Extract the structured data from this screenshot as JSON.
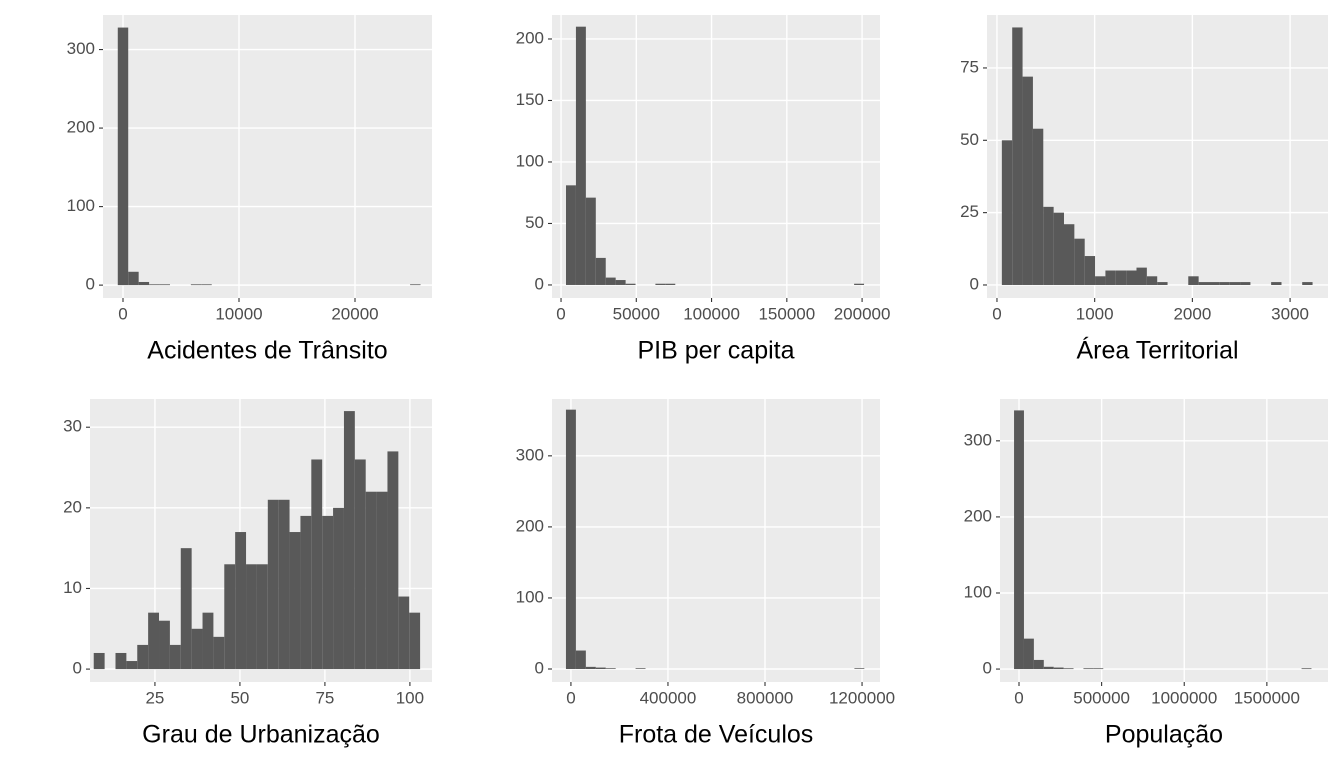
{
  "chart_data": [
    {
      "type": "histogram",
      "xlabel": "Acidentes de Trânsito",
      "color": "#595959",
      "grid": true,
      "bins": [
        -450,
        450,
        1350,
        2250,
        3150,
        4050,
        4950,
        5850,
        6750,
        7650,
        8550,
        9450,
        10350,
        11250,
        12150,
        13050,
        13950,
        14850,
        15750,
        16650,
        17550,
        18450,
        19350,
        20250,
        21150,
        22050,
        22950,
        23850,
        24750,
        25650,
        26550
      ],
      "counts": [
        328,
        17,
        4,
        1,
        1,
        0,
        0,
        1,
        1,
        0,
        0,
        0,
        0,
        0,
        0,
        0,
        0,
        0,
        0,
        0,
        0,
        0,
        0,
        0,
        0,
        0,
        0,
        0,
        1,
        0
      ],
      "xlim": [
        -1724,
        26638
      ],
      "ylim": [
        -16.4,
        344
      ],
      "xticks": [
        0,
        10000,
        20000
      ],
      "yticks": [
        0,
        100,
        200,
        300
      ]
    },
    {
      "type": "histogram",
      "xlabel": "PIB per capita",
      "color": "#595959",
      "grid": true,
      "bins": [
        3300,
        9900,
        16500,
        23100,
        29700,
        36300,
        42900,
        49500,
        56100,
        62700,
        69300,
        75900,
        82500,
        89100,
        95700,
        102300,
        108900,
        115500,
        122100,
        128700,
        135300,
        141900,
        148500,
        155100,
        161700,
        168300,
        174900,
        181500,
        188100,
        194700,
        201300
      ],
      "counts": [
        81,
        210,
        71,
        22,
        6,
        4,
        1,
        0,
        0,
        1,
        1,
        0,
        0,
        0,
        0,
        0,
        0,
        0,
        0,
        0,
        0,
        0,
        0,
        0,
        0,
        0,
        0,
        0,
        0,
        1
      ],
      "xlim": [
        -6000,
        211900
      ],
      "ylim": [
        -10.6,
        219.5
      ],
      "xticks": [
        0,
        50000,
        100000,
        150000,
        200000
      ],
      "yticks": [
        0,
        50,
        100,
        150,
        200
      ]
    },
    {
      "type": "histogram",
      "xlabel": "Área Territorial",
      "color": "#595959",
      "grid": true,
      "bins": [
        50,
        156,
        262,
        368,
        474,
        580,
        686,
        792,
        898,
        1004,
        1110,
        1216,
        1322,
        1428,
        1534,
        1640,
        1746,
        1852,
        1958,
        2064,
        2170,
        2276,
        2382,
        2488,
        2594,
        2700,
        2806,
        2912,
        3018,
        3124,
        3230
      ],
      "counts": [
        50,
        89,
        72,
        54,
        27,
        25,
        21,
        16,
        10,
        3,
        5,
        5,
        5,
        6,
        3,
        1,
        0,
        0,
        3,
        1,
        1,
        1,
        1,
        1,
        0,
        0,
        1,
        0,
        0,
        1
      ],
      "xlim": [
        -102,
        3388
      ],
      "ylim": [
        -4.5,
        93.3
      ],
      "xticks": [
        0,
        1000,
        2000,
        3000
      ],
      "yticks": [
        0,
        25,
        50,
        75
      ]
    },
    {
      "type": "histogram",
      "xlabel": "Grau de Urbanização",
      "color": "#595959",
      "grid": true,
      "bins": [
        7,
        10.2,
        13.4,
        16.6,
        19.8,
        23,
        26.2,
        29.4,
        32.6,
        35.8,
        39,
        42.2,
        45.4,
        48.6,
        51.8,
        55,
        58.2,
        61.4,
        64.6,
        67.8,
        71,
        74.2,
        77.4,
        80.6,
        83.8,
        87,
        90.2,
        93.4,
        96.6,
        99.8,
        103
      ],
      "counts": [
        2,
        0,
        2,
        1,
        3,
        7,
        6,
        3,
        15,
        5,
        7,
        4,
        13,
        17,
        13,
        13,
        21,
        21,
        17,
        19,
        26,
        19,
        20,
        32,
        26,
        22,
        22,
        27,
        9,
        7
      ],
      "xlim": [
        5.9,
        106.5
      ],
      "ylim": [
        -1.6,
        33.5
      ],
      "xticks": [
        25,
        50,
        75,
        100
      ],
      "yticks": [
        0,
        10,
        20,
        30
      ]
    },
    {
      "type": "histogram",
      "xlabel": "Frota de Veículos",
      "color": "#595959",
      "grid": true,
      "bins": [
        -20500,
        20500,
        61500,
        102500,
        143500,
        184500,
        225500,
        266500,
        307500,
        348500,
        389500,
        430500,
        471500,
        512500,
        553500,
        594500,
        635500,
        676500,
        717500,
        758500,
        799500,
        840500,
        881500,
        922500,
        963500,
        1004500,
        1045500,
        1086500,
        1127500,
        1168500,
        1209500
      ],
      "counts": [
        365,
        26,
        3,
        2,
        1,
        0,
        0,
        1,
        0,
        0,
        0,
        0,
        0,
        0,
        0,
        0,
        0,
        0,
        0,
        0,
        0,
        0,
        0,
        0,
        0,
        0,
        0,
        0,
        0,
        1
      ],
      "xlim": [
        -78000,
        1274000
      ],
      "ylim": [
        -18.3,
        380
      ],
      "xticks": [
        0,
        400000,
        800000,
        1200000
      ],
      "yticks": [
        0,
        100,
        200,
        300
      ]
    },
    {
      "type": "histogram",
      "xlabel": "População",
      "color": "#595959",
      "grid": true,
      "bins": [
        -30000,
        30000,
        90000,
        150000,
        210000,
        270000,
        330000,
        390000,
        450000,
        510000,
        570000,
        630000,
        690000,
        750000,
        810000,
        870000,
        930000,
        990000,
        1050000,
        1110000,
        1170000,
        1230000,
        1290000,
        1350000,
        1410000,
        1470000,
        1530000,
        1590000,
        1650000,
        1710000,
        1770000
      ],
      "counts": [
        340,
        40,
        12,
        3,
        2,
        1,
        0,
        1,
        1,
        0,
        0,
        0,
        0,
        0,
        0,
        0,
        0,
        0,
        0,
        0,
        0,
        0,
        0,
        0,
        0,
        0,
        0,
        0,
        0,
        1
      ],
      "xlim": [
        -115000,
        1870000
      ],
      "ylim": [
        -17,
        355
      ],
      "xticks": [
        0,
        500000,
        1000000,
        1500000
      ],
      "yticks": [
        0,
        100,
        200,
        300
      ]
    }
  ]
}
